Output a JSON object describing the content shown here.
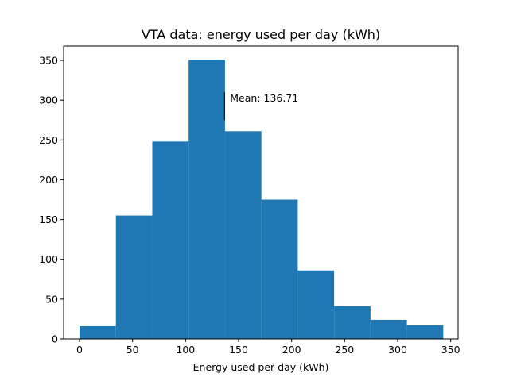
{
  "chart_data": {
    "type": "bar",
    "subtype": "histogram",
    "title": "VTA data: energy used per day (kWh)",
    "xlabel": "Energy used per day (kWh)",
    "ylabel": "",
    "xlim": [
      -15,
      357
    ],
    "ylim": [
      0,
      368
    ],
    "bar_color": "#1f77b4",
    "grid": false,
    "bins": [
      {
        "x0": 0,
        "x1": 34.3,
        "count": 16
      },
      {
        "x0": 34.3,
        "x1": 68.6,
        "count": 155
      },
      {
        "x0": 68.6,
        "x1": 102.9,
        "count": 248
      },
      {
        "x0": 102.9,
        "x1": 137.2,
        "count": 351
      },
      {
        "x0": 137.2,
        "x1": 171.5,
        "count": 261
      },
      {
        "x0": 171.5,
        "x1": 205.8,
        "count": 175
      },
      {
        "x0": 205.8,
        "x1": 240.1,
        "count": 86
      },
      {
        "x0": 240.1,
        "x1": 274.4,
        "count": 41
      },
      {
        "x0": 274.4,
        "x1": 308.7,
        "count": 24
      },
      {
        "x0": 308.7,
        "x1": 343.0,
        "count": 17
      }
    ],
    "x_ticks": [
      0,
      50,
      100,
      150,
      200,
      250,
      300,
      350
    ],
    "y_ticks": [
      0,
      50,
      100,
      150,
      200,
      250,
      300,
      350
    ],
    "annotation": {
      "text": "Mean: 136.71",
      "x": 136.71,
      "y_low": 275,
      "y_high": 310
    }
  }
}
